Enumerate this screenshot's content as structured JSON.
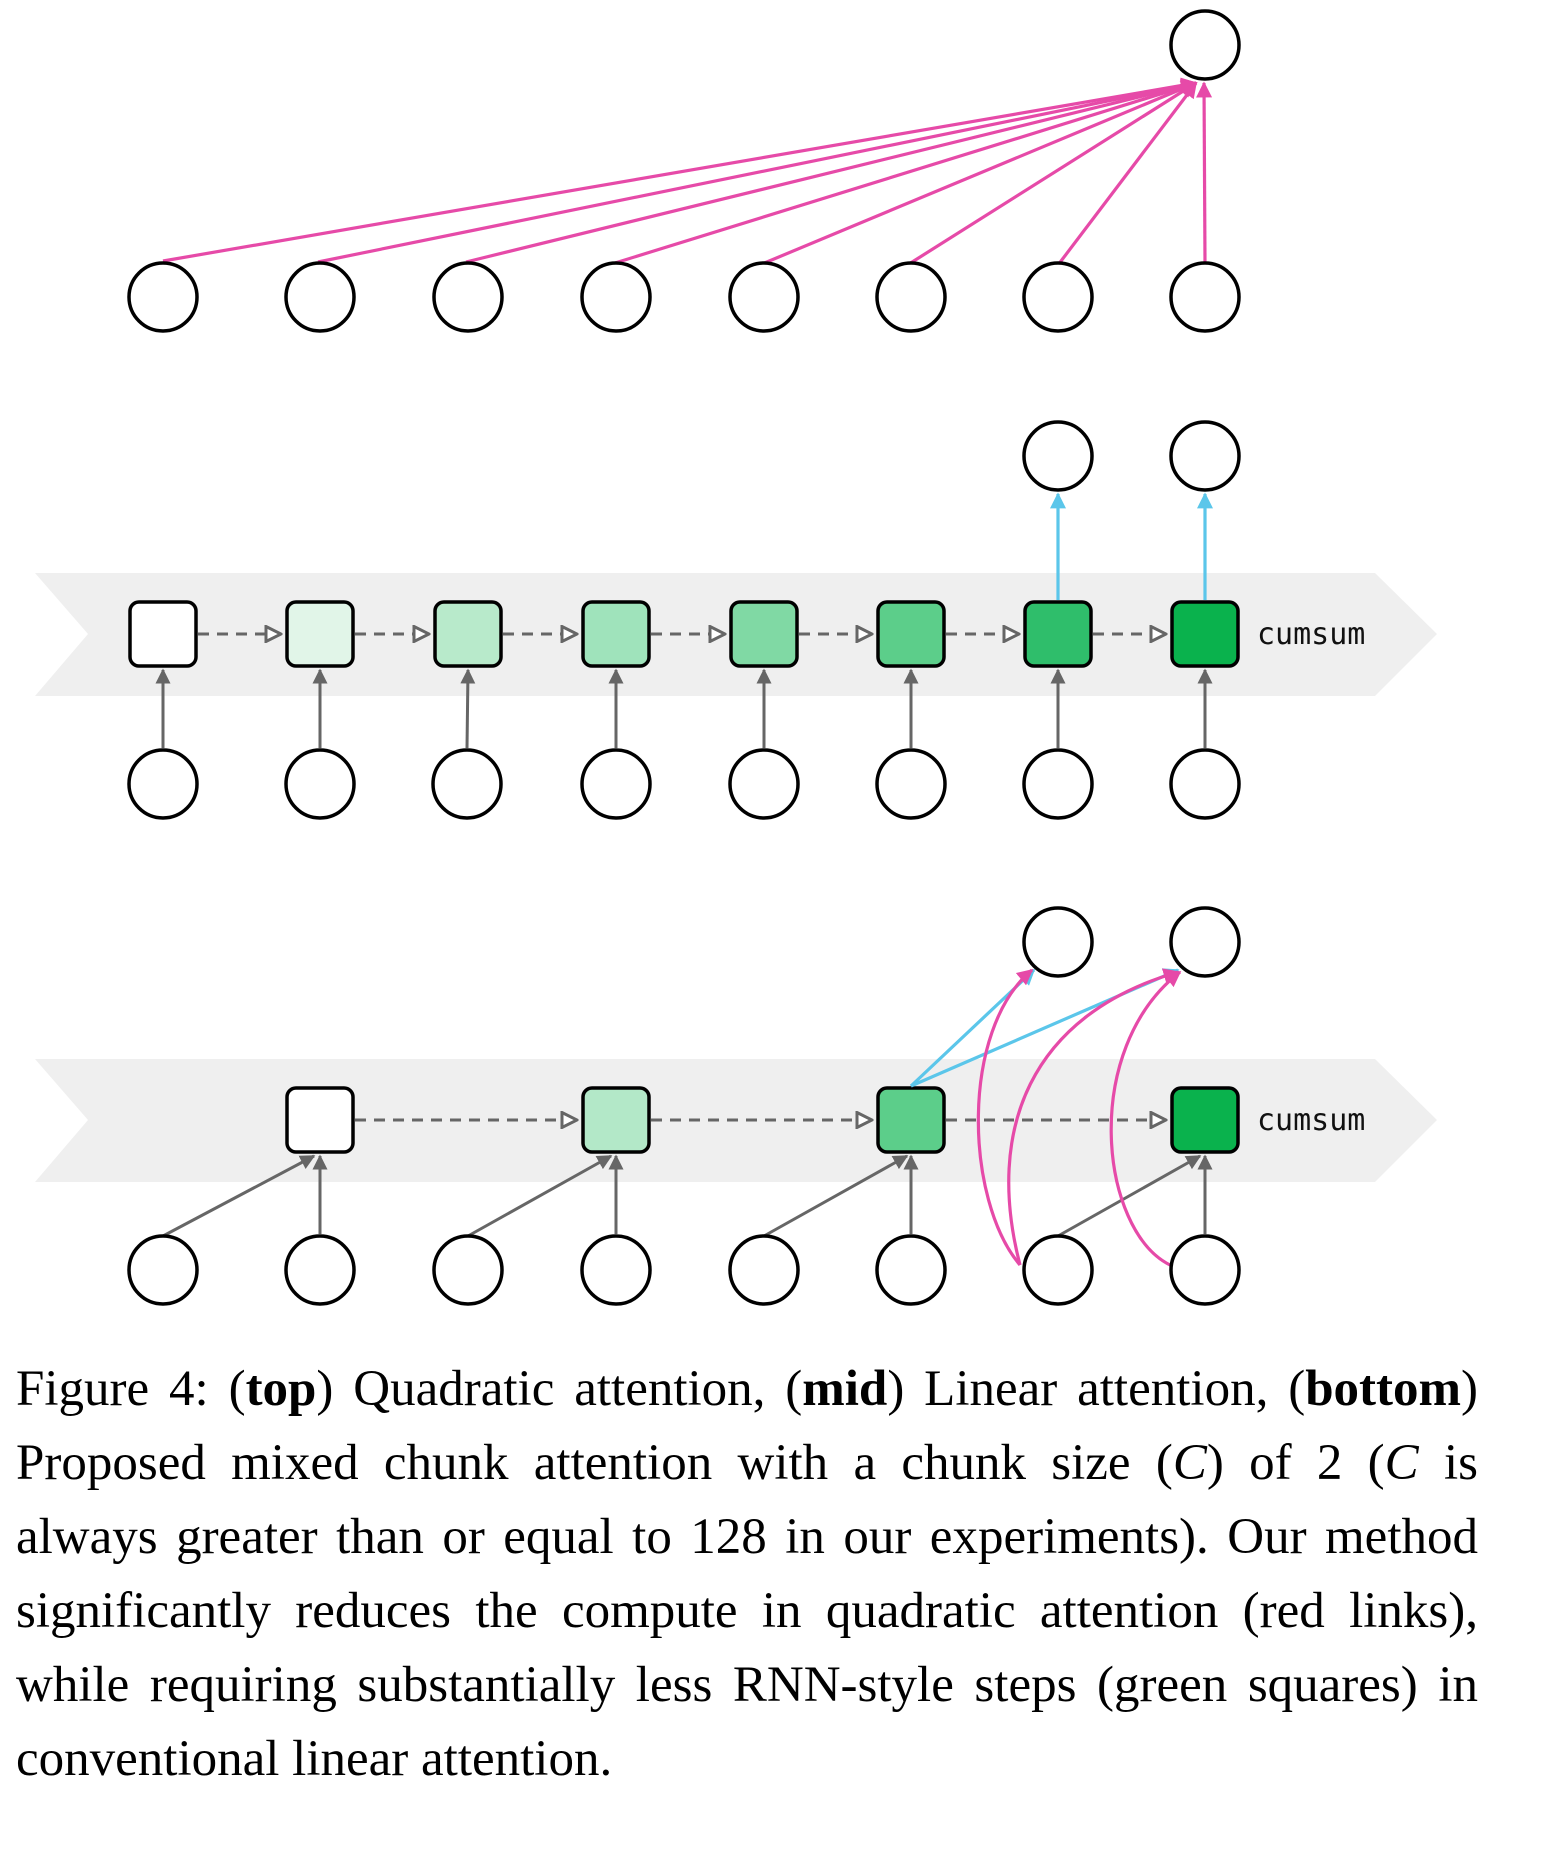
{
  "diagram": {
    "mid_band_label": "cumsum",
    "bottom_band_label": "cumsum",
    "colors": {
      "quadratic_link": "#e64aa8",
      "output_link": "#5bc6ea",
      "step_link": "#666666",
      "band": "#efefef",
      "square_shades": [
        "#ffffff",
        "#e1f5e8",
        "#b8eacb",
        "#9fe3bb",
        "#80d9a4",
        "#5cce8a",
        "#2fbe6b",
        "#0ab24d"
      ]
    },
    "icons": [
      "circle-node",
      "rounded-square-state",
      "arrow-link",
      "chevron-band"
    ]
  },
  "caption": {
    "prefix": "Figure 4: (",
    "top_label": "top",
    "part1": ") Quadratic attention, (",
    "mid_label": "mid",
    "part2": ") Linear attention, (",
    "bottom_label": "bottom",
    "part3": ") Proposed mixed chunk attention with a chunk size (",
    "c_symbol": "C",
    "part4": ") of 2 (",
    "c_symbol2": "C",
    "part5": " is always greater than or equal to 128 in our experiments). Our method significantly reduces the compute in quadratic attention (red links), while requiring substantially less RNN-style steps (green squares) in conventional linear attention."
  }
}
